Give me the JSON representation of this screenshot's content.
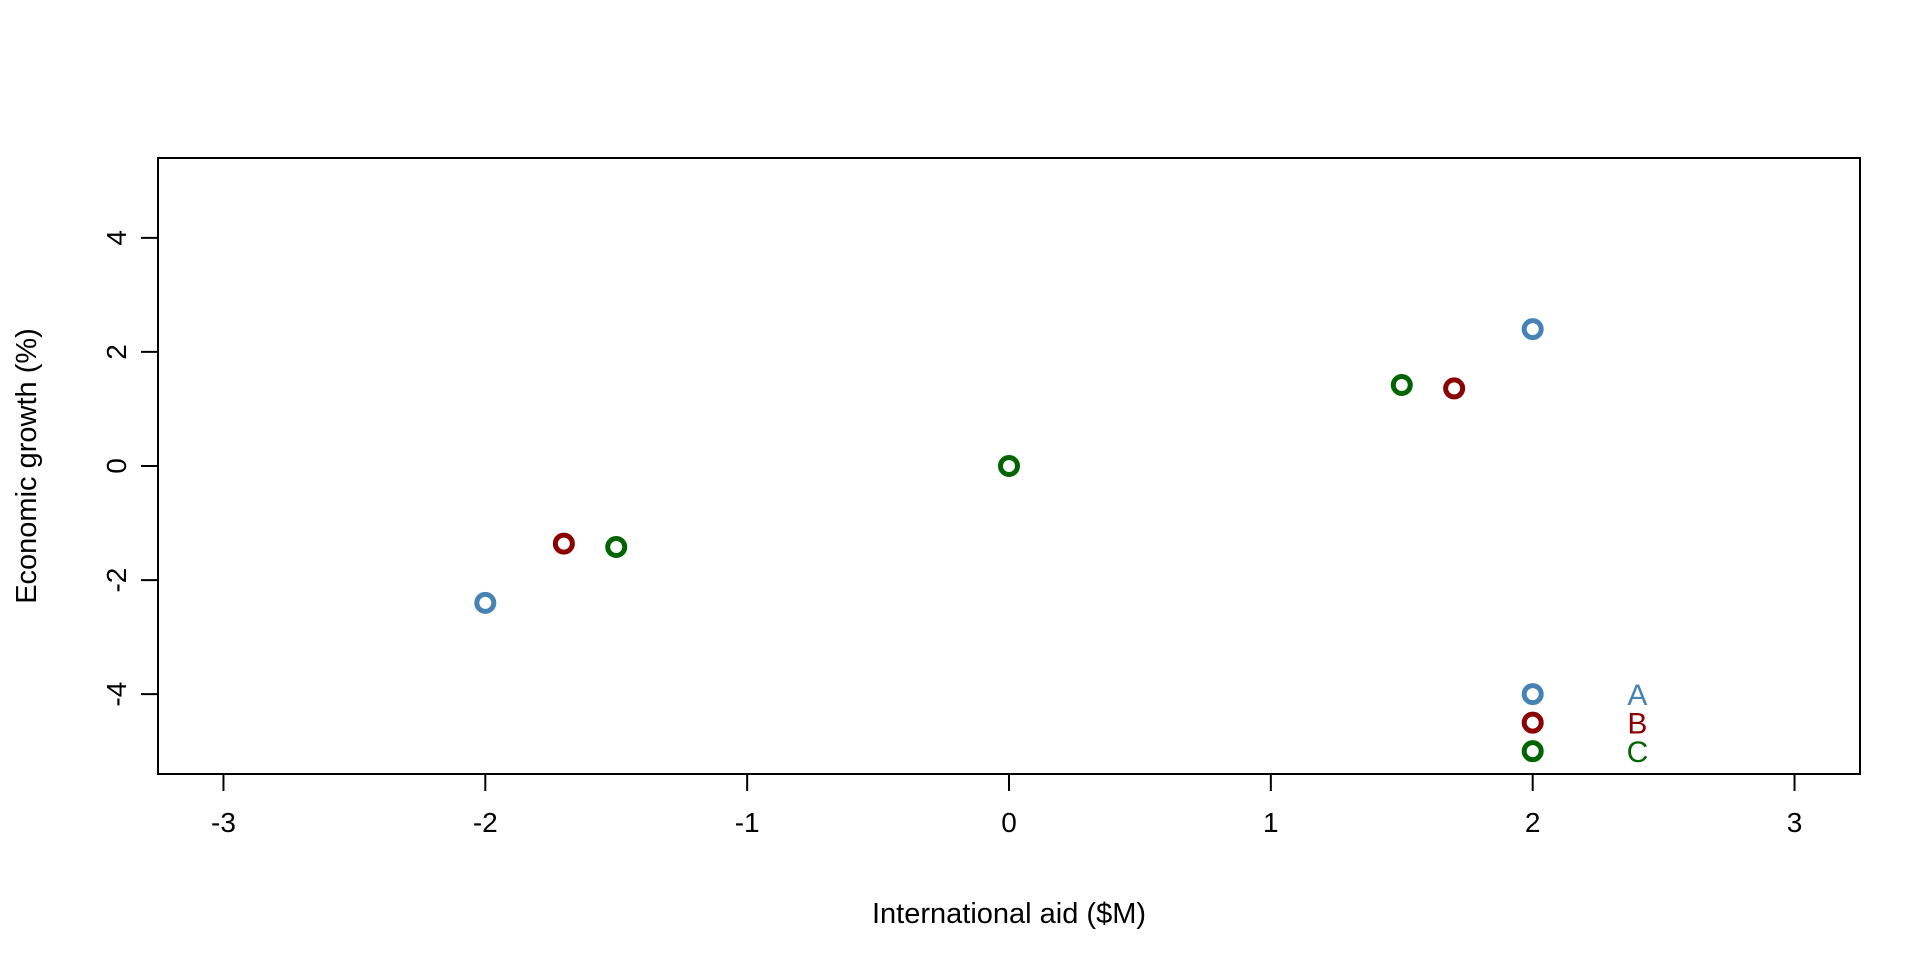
{
  "chart_data": {
    "type": "scatter",
    "title": "",
    "xlabel": "International aid ($M)",
    "ylabel": "Economic growth (%)",
    "xlim": [
      -3.25,
      3.25
    ],
    "ylim": [
      -5.4,
      5.4
    ],
    "xticks": [
      -3,
      -2,
      -1,
      0,
      1,
      2,
      3
    ],
    "yticks": [
      -4,
      -2,
      0,
      2,
      4
    ],
    "grid": false,
    "legend": {
      "placement": "bottom-right",
      "inside": true
    },
    "series": [
      {
        "name": "A",
        "color": "#4682B4",
        "points": [
          {
            "x": -2,
            "y": -2.4
          },
          {
            "x": 2,
            "y": 2.4
          }
        ]
      },
      {
        "name": "B",
        "color": "#8B0000",
        "points": [
          {
            "x": -1.7,
            "y": -1.36
          },
          {
            "x": 1.7,
            "y": 1.36
          }
        ]
      },
      {
        "name": "C",
        "color": "#006400",
        "points": [
          {
            "x": -1.5,
            "y": -1.42
          },
          {
            "x": 0,
            "y": 0
          },
          {
            "x": 1.5,
            "y": 1.42
          }
        ]
      }
    ]
  }
}
